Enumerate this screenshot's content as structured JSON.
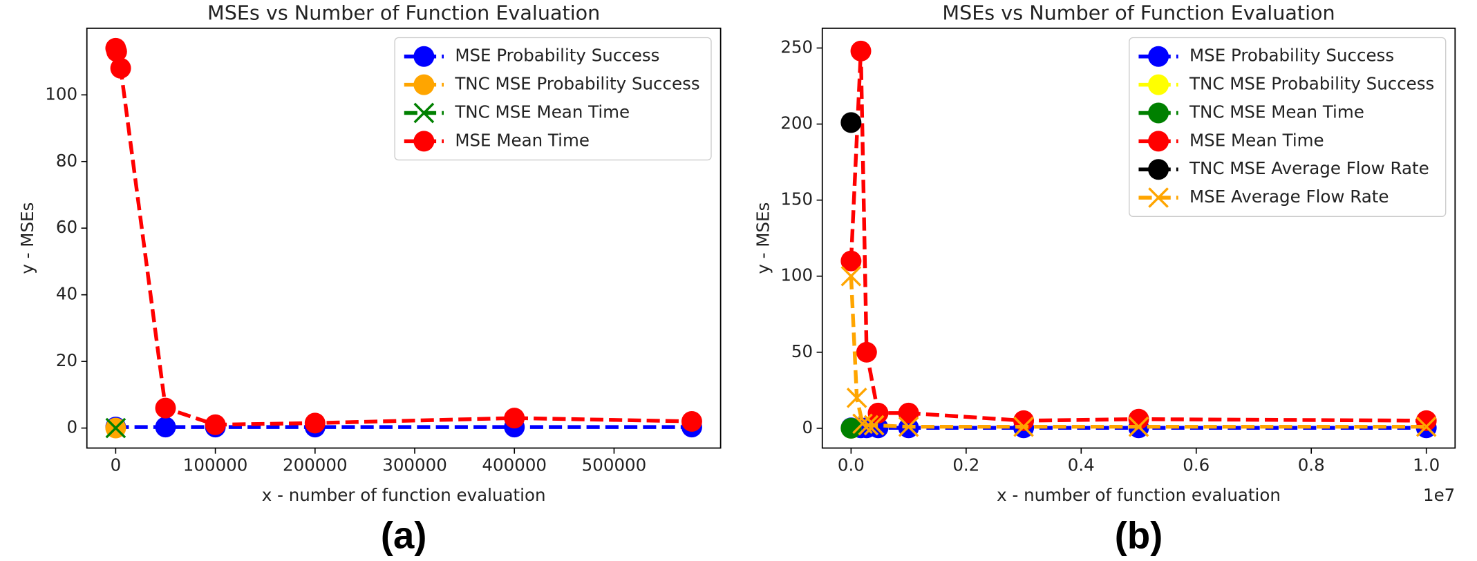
{
  "chart_data": [
    {
      "type": "line",
      "title": "MSEs vs Number of Function Evaluation",
      "xlabel": "x - number of function evaluation",
      "ylabel": "y - MSEs",
      "caption": "(a)",
      "xlim": [
        -28900,
        606900
      ],
      "ylim": [
        -6,
        120
      ],
      "xticks": [
        0,
        100000,
        200000,
        300000,
        400000,
        500000
      ],
      "yticks": [
        0,
        20,
        40,
        60,
        80,
        100
      ],
      "legend_loc": "upper right",
      "series": [
        {
          "name": "MSE Probability Success",
          "color": "#0000ff",
          "marker": "o",
          "linestyle": "dashed",
          "x": [
            0,
            50000,
            100000,
            200000,
            400000,
            578000
          ],
          "values": [
            0.3,
            0.3,
            0.3,
            0.3,
            0.3,
            0.3
          ]
        },
        {
          "name": "TNC MSE Probability Success",
          "color": "#ffa500",
          "marker": "o",
          "linestyle": "dashed",
          "x": [
            0
          ],
          "values": [
            0
          ]
        },
        {
          "name": "TNC MSE Mean Time",
          "color": "#008000",
          "marker": "x",
          "linestyle": "dashed",
          "x": [
            0
          ],
          "values": [
            0
          ]
        },
        {
          "name": "MSE Mean Time",
          "color": "#ff0000",
          "marker": "o",
          "linestyle": "dashed",
          "x": [
            0,
            1000,
            5000,
            50000,
            100000,
            200000,
            400000,
            578000
          ],
          "values": [
            114,
            113,
            108,
            6,
            1,
            1.5,
            3,
            2
          ]
        }
      ]
    },
    {
      "type": "line",
      "title": "MSEs vs Number of Function Evaluation",
      "xlabel": "x - number of function evaluation",
      "ylabel": "y - MSEs",
      "caption": "(b)",
      "x_offset_label": "1e7",
      "xlim": [
        -500000,
        10500000
      ],
      "ylim": [
        -13,
        263
      ],
      "xticks": [
        {
          "value": 0,
          "label": "0.0"
        },
        {
          "value": 2000000,
          "label": "0.2"
        },
        {
          "value": 4000000,
          "label": "0.4"
        },
        {
          "value": 6000000,
          "label": "0.6"
        },
        {
          "value": 8000000,
          "label": "0.8"
        },
        {
          "value": 10000000,
          "label": "1.0"
        }
      ],
      "yticks": [
        0,
        50,
        100,
        150,
        200,
        250
      ],
      "legend_loc": "upper right",
      "series": [
        {
          "name": "MSE Probability Success",
          "color": "#0000ff",
          "marker": "o",
          "linestyle": "dashed",
          "x": [
            0,
            170000,
            270000,
            470000,
            1000000,
            3000000,
            5000000,
            10000000
          ],
          "values": [
            0.3,
            0.3,
            0.3,
            0.3,
            0.3,
            0.3,
            0.3,
            0.3
          ]
        },
        {
          "name": "TNC MSE Probability Success",
          "color": "#ffff00",
          "marker": "o",
          "linestyle": "dashed",
          "x": [
            0
          ],
          "values": [
            0
          ]
        },
        {
          "name": "TNC MSE Mean Time",
          "color": "#008000",
          "marker": "o",
          "linestyle": "dashed",
          "x": [
            0
          ],
          "values": [
            0
          ]
        },
        {
          "name": "MSE Mean Time",
          "color": "#ff0000",
          "marker": "o",
          "linestyle": "dashed",
          "x": [
            0,
            170000,
            270000,
            470000,
            1000000,
            3000000,
            5000000,
            10000000
          ],
          "values": [
            110,
            248,
            50,
            10,
            10,
            5,
            6,
            5
          ]
        },
        {
          "name": "TNC MSE Average Flow Rate",
          "color": "#000000",
          "marker": "o",
          "linestyle": "dashed",
          "x": [
            0
          ],
          "values": [
            201
          ]
        },
        {
          "name": "MSE Average Flow Rate",
          "color": "#ffa500",
          "marker": "x",
          "linestyle": "dashed",
          "x": [
            0,
            100000,
            200000,
            300000,
            400000,
            1000000,
            3000000,
            5000000,
            10000000
          ],
          "values": [
            100,
            20,
            3,
            2,
            2,
            1,
            1,
            1,
            1
          ]
        }
      ]
    }
  ]
}
